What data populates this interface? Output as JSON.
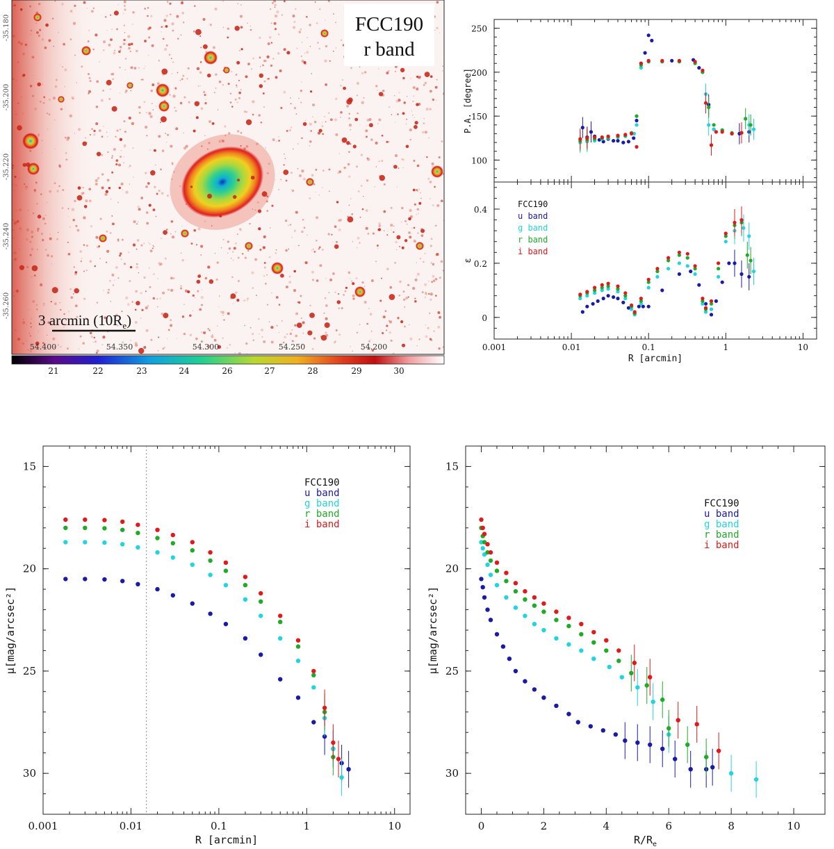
{
  "figure": {
    "panel_a": {
      "galaxy": "FCC190",
      "band": "r band",
      "scale_bar_label": "3 arcmin (10R",
      "scale_bar_sub": "e",
      "scale_bar_close": ")",
      "ra_ticks": [
        "54.400",
        "54.350",
        "54.300",
        "54.250",
        "54.200"
      ],
      "dec_ticks": [
        "-35.180",
        "-35.200",
        "-35.220",
        "-35.240",
        "-35.260"
      ],
      "colorbar_ticks": [
        "21",
        "22",
        "23",
        "24",
        "26",
        "27",
        "28",
        "29",
        "30"
      ]
    }
  },
  "chart_data": [
    {
      "id": "pa",
      "type": "scatter",
      "xscale": "log",
      "xlim": [
        0.001,
        15
      ],
      "ylim": [
        75,
        260
      ],
      "ylabel": "P.A. [degree]",
      "xticks": [],
      "yticks": [
        100,
        150,
        200,
        250
      ],
      "series": [
        {
          "name": "u band",
          "color": "#1a1aa8",
          "x": [
            0.014,
            0.016,
            0.018,
            0.02,
            0.023,
            0.026,
            0.03,
            0.035,
            0.04,
            0.047,
            0.055,
            0.064,
            0.07,
            0.08,
            0.09,
            0.1,
            0.11,
            0.2,
            0.38,
            0.45,
            0.6,
            0.7,
            0.9,
            1.2,
            1.5,
            2.0
          ],
          "y": [
            137,
            126,
            132,
            127,
            123,
            121,
            124,
            122,
            122,
            120,
            121,
            125,
            145,
            210,
            222,
            242,
            236,
            213,
            214,
            205,
            163,
            135,
            134,
            130,
            130,
            132
          ]
        },
        {
          "name": "g band",
          "color": "#22d4de",
          "x": [
            0.013,
            0.016,
            0.02,
            0.025,
            0.03,
            0.04,
            0.05,
            0.065,
            0.07,
            0.08,
            0.1,
            0.15,
            0.25,
            0.4,
            0.5,
            0.55,
            0.6,
            0.7,
            0.9,
            1.2,
            1.6,
            2.0,
            2.3
          ],
          "y": [
            120,
            121,
            122,
            124,
            125,
            126,
            127,
            130,
            140,
            205,
            212,
            212,
            212,
            211,
            200,
            175,
            140,
            135,
            134,
            130,
            131,
            140,
            135
          ]
        },
        {
          "name": "r band",
          "color": "#1faa28",
          "x": [
            0.013,
            0.016,
            0.02,
            0.025,
            0.03,
            0.04,
            0.05,
            0.06,
            0.07,
            0.08,
            0.1,
            0.15,
            0.25,
            0.4,
            0.5,
            0.6,
            0.7,
            0.9,
            1.2,
            1.6,
            1.8,
            2.1
          ],
          "y": [
            122,
            123,
            124,
            125,
            126,
            127,
            128,
            131,
            150,
            208,
            212,
            212,
            212,
            210,
            200,
            160,
            140,
            134,
            131,
            131,
            147,
            140
          ]
        },
        {
          "name": "i band",
          "color": "#e01a1a",
          "x": [
            0.013,
            0.016,
            0.02,
            0.025,
            0.03,
            0.04,
            0.05,
            0.06,
            0.07,
            0.08,
            0.1,
            0.15,
            0.25,
            0.4,
            0.5,
            0.55,
            0.65,
            0.75,
            0.9,
            1.2,
            1.6
          ],
          "y": [
            124,
            125,
            126,
            126,
            127,
            128,
            129,
            130,
            115,
            210,
            213,
            213,
            213,
            212,
            202,
            165,
            117,
            132,
            132,
            130,
            131
          ]
        }
      ]
    },
    {
      "id": "eps",
      "type": "scatter",
      "xscale": "log",
      "xlim": [
        0.001,
        15
      ],
      "ylim": [
        -0.08,
        0.5
      ],
      "xlabel": "R [arcmin]",
      "ylabel": "ε",
      "xticks": [
        "0.001",
        "0.01",
        "0.1",
        "1",
        "10"
      ],
      "yticks": [
        0,
        0.2,
        0.4
      ],
      "legend": {
        "title": "FCC190",
        "labels": [
          "u band",
          "g band",
          "r band",
          "i band"
        ]
      },
      "series": [
        {
          "name": "u band",
          "color": "#1a1aa8",
          "x": [
            0.014,
            0.016,
            0.019,
            0.022,
            0.026,
            0.03,
            0.035,
            0.04,
            0.047,
            0.055,
            0.066,
            0.075,
            0.085,
            0.1,
            0.15,
            0.25,
            0.35,
            0.45,
            0.55,
            0.65,
            0.75,
            0.9,
            1.1,
            1.3,
            1.6,
            2.0
          ],
          "y": [
            0.02,
            0.04,
            0.05,
            0.06,
            0.07,
            0.08,
            0.075,
            0.07,
            0.055,
            0.035,
            0.015,
            0.04,
            0.04,
            0.04,
            0.1,
            0.16,
            0.17,
            0.12,
            0.05,
            0.01,
            0.06,
            0.13,
            0.2,
            0.2,
            0.16,
            0.15
          ]
        },
        {
          "name": "g band",
          "color": "#22d4de",
          "x": [
            0.013,
            0.016,
            0.02,
            0.025,
            0.03,
            0.04,
            0.05,
            0.06,
            0.066,
            0.08,
            0.1,
            0.13,
            0.18,
            0.25,
            0.32,
            0.4,
            0.5,
            0.55,
            0.65,
            0.8,
            1.0,
            1.3,
            1.7,
            2.0,
            2.3
          ],
          "y": [
            0.07,
            0.08,
            0.09,
            0.1,
            0.105,
            0.095,
            0.07,
            0.03,
            0.01,
            0.05,
            0.11,
            0.15,
            0.18,
            0.2,
            0.19,
            0.16,
            0.05,
            0.02,
            0.03,
            0.15,
            0.28,
            0.32,
            0.33,
            0.3,
            0.17
          ]
        },
        {
          "name": "r band",
          "color": "#1faa28",
          "x": [
            0.013,
            0.016,
            0.02,
            0.025,
            0.03,
            0.04,
            0.05,
            0.06,
            0.066,
            0.08,
            0.1,
            0.13,
            0.18,
            0.25,
            0.32,
            0.4,
            0.5,
            0.55,
            0.65,
            0.8,
            1.0,
            1.3,
            1.6,
            1.9,
            2.1
          ],
          "y": [
            0.08,
            0.09,
            0.1,
            0.11,
            0.115,
            0.105,
            0.08,
            0.04,
            0.015,
            0.06,
            0.13,
            0.17,
            0.21,
            0.23,
            0.22,
            0.18,
            0.06,
            0.03,
            0.05,
            0.18,
            0.3,
            0.34,
            0.35,
            0.23,
            0.21
          ]
        },
        {
          "name": "i band",
          "color": "#e01a1a",
          "x": [
            0.013,
            0.016,
            0.02,
            0.025,
            0.03,
            0.04,
            0.05,
            0.06,
            0.066,
            0.08,
            0.1,
            0.13,
            0.18,
            0.25,
            0.32,
            0.4,
            0.5,
            0.55,
            0.65,
            0.8,
            1.0,
            1.3,
            1.6
          ],
          "y": [
            0.085,
            0.095,
            0.11,
            0.12,
            0.125,
            0.115,
            0.09,
            0.045,
            0.02,
            0.07,
            0.14,
            0.18,
            0.22,
            0.24,
            0.235,
            0.19,
            0.07,
            0.035,
            0.06,
            0.2,
            0.31,
            0.35,
            0.36
          ]
        }
      ]
    },
    {
      "id": "mu_r",
      "type": "scatter",
      "xscale": "log",
      "xlim": [
        0.001,
        15
      ],
      "ylim": [
        32,
        14
      ],
      "xlabel": "R [arcmin]",
      "ylabel": "μ[mag/arcsec²]",
      "xticks": [
        "0.001",
        "0.01",
        "0.1",
        "1",
        "10"
      ],
      "yticks": [
        15,
        20,
        25,
        30
      ],
      "vline_x": 0.015,
      "legend": {
        "title": "FCC190",
        "labels": [
          "u band",
          "g band",
          "r band",
          "i band"
        ]
      },
      "series": [
        {
          "name": "u band",
          "color": "#1a1aa8",
          "x": [
            0.0018,
            0.003,
            0.005,
            0.008,
            0.012,
            0.02,
            0.03,
            0.05,
            0.08,
            0.12,
            0.2,
            0.3,
            0.5,
            0.8,
            1.2,
            1.6,
            2.0,
            2.5,
            3.0
          ],
          "y": [
            20.5,
            20.5,
            20.52,
            20.6,
            20.75,
            21.0,
            21.3,
            21.7,
            22.2,
            22.7,
            23.4,
            24.2,
            25.4,
            26.3,
            27.5,
            28.2,
            28.8,
            29.5,
            29.8
          ]
        },
        {
          "name": "g band",
          "color": "#22d4de",
          "x": [
            0.0018,
            0.003,
            0.005,
            0.008,
            0.012,
            0.02,
            0.03,
            0.05,
            0.08,
            0.12,
            0.2,
            0.3,
            0.5,
            0.8,
            1.2,
            1.6,
            2.0,
            2.5
          ],
          "y": [
            18.7,
            18.7,
            18.72,
            18.8,
            18.95,
            19.2,
            19.45,
            19.8,
            20.3,
            20.8,
            21.5,
            22.3,
            23.4,
            24.5,
            25.8,
            27.3,
            28.8,
            30.2
          ]
        },
        {
          "name": "r band",
          "color": "#1faa28",
          "x": [
            0.0018,
            0.003,
            0.005,
            0.008,
            0.012,
            0.02,
            0.03,
            0.05,
            0.08,
            0.12,
            0.2,
            0.3,
            0.5,
            0.8,
            1.2,
            1.6,
            2.0
          ],
          "y": [
            18.0,
            18.0,
            18.02,
            18.1,
            18.25,
            18.5,
            18.75,
            19.1,
            19.6,
            20.1,
            20.8,
            21.6,
            22.6,
            23.8,
            25.2,
            27.0,
            29.2
          ]
        },
        {
          "name": "i band",
          "color": "#e01a1a",
          "x": [
            0.0018,
            0.003,
            0.005,
            0.008,
            0.012,
            0.02,
            0.03,
            0.05,
            0.08,
            0.12,
            0.2,
            0.3,
            0.5,
            0.8,
            1.2,
            1.6,
            2.0,
            2.3
          ],
          "y": [
            17.6,
            17.6,
            17.62,
            17.7,
            17.85,
            18.1,
            18.35,
            18.7,
            19.2,
            19.7,
            20.4,
            21.2,
            22.3,
            23.5,
            25.0,
            26.8,
            28.5,
            29.3
          ]
        }
      ]
    },
    {
      "id": "mu_re",
      "type": "scatter",
      "xscale": "linear",
      "xlim": [
        -0.5,
        11
      ],
      "ylim": [
        32,
        14
      ],
      "xlabel": "R/R",
      "xlabel_sub": "e",
      "ylabel": "μ[mag/arcsec²]",
      "xticks": [
        "0",
        "2",
        "4",
        "6",
        "8",
        "10"
      ],
      "yticks": [
        15,
        20,
        25,
        30
      ],
      "legend": {
        "title": "FCC190",
        "labels": [
          "u band",
          "g band",
          "r band",
          "i band"
        ]
      },
      "series": [
        {
          "name": "u band",
          "color": "#1a1aa8",
          "x": [
            0.0,
            0.05,
            0.1,
            0.2,
            0.3,
            0.5,
            0.7,
            0.9,
            1.1,
            1.4,
            1.7,
            2.0,
            2.4,
            2.8,
            3.1,
            3.5,
            3.9,
            4.3,
            4.6,
            5.0,
            5.4,
            5.8,
            6.2,
            6.7,
            7.2,
            7.4
          ],
          "y": [
            20.5,
            20.9,
            21.4,
            22.0,
            22.5,
            23.2,
            23.8,
            24.4,
            25.0,
            25.5,
            25.9,
            26.3,
            26.7,
            27.1,
            27.5,
            27.7,
            27.9,
            28.1,
            28.4,
            28.5,
            28.6,
            28.8,
            29.3,
            29.8,
            29.8,
            29.7
          ]
        },
        {
          "name": "g band",
          "color": "#22d4de",
          "x": [
            0.0,
            0.05,
            0.1,
            0.2,
            0.3,
            0.5,
            0.8,
            1.1,
            1.4,
            1.7,
            2.0,
            2.4,
            2.8,
            3.2,
            3.6,
            4.1,
            4.5,
            5.0,
            5.5,
            6.0,
            8.0,
            8.8
          ],
          "y": [
            18.7,
            19.0,
            19.3,
            19.8,
            20.3,
            20.8,
            21.4,
            21.9,
            22.3,
            22.7,
            23.0,
            23.4,
            23.7,
            24.0,
            24.4,
            24.8,
            25.3,
            25.8,
            26.5,
            28.1,
            30.0,
            30.3
          ]
        },
        {
          "name": "r band",
          "color": "#1faa28",
          "x": [
            0.0,
            0.05,
            0.1,
            0.2,
            0.3,
            0.5,
            0.8,
            1.1,
            1.4,
            1.7,
            2.0,
            2.4,
            2.8,
            3.2,
            3.6,
            4.0,
            4.4,
            4.8,
            5.3,
            5.8,
            6.0,
            6.6,
            7.2
          ],
          "y": [
            18.0,
            18.4,
            18.7,
            19.2,
            19.6,
            20.1,
            20.6,
            21.1,
            21.5,
            21.8,
            22.1,
            22.5,
            22.8,
            23.2,
            23.6,
            24.0,
            24.5,
            25.1,
            25.7,
            26.4,
            27.8,
            28.6,
            29.2
          ]
        },
        {
          "name": "i band",
          "color": "#e01a1a",
          "x": [
            0.0,
            0.05,
            0.1,
            0.2,
            0.3,
            0.5,
            0.8,
            1.1,
            1.4,
            1.7,
            2.0,
            2.4,
            2.8,
            3.2,
            3.6,
            4.0,
            4.4,
            4.9,
            5.4,
            6.3,
            6.9,
            7.6
          ],
          "y": [
            17.6,
            18.0,
            18.3,
            18.8,
            19.2,
            19.7,
            20.2,
            20.7,
            21.1,
            21.4,
            21.7,
            22.1,
            22.4,
            22.7,
            23.1,
            23.5,
            24.0,
            24.6,
            25.3,
            27.4,
            27.6,
            28.9
          ]
        }
      ]
    }
  ]
}
